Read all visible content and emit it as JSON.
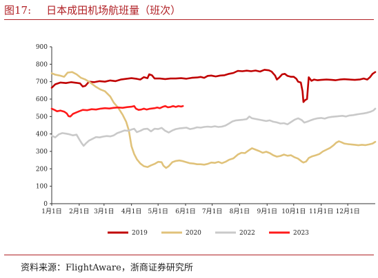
{
  "figure": {
    "number": "图17:",
    "title": "日本成田机场航班量（班次）",
    "source": "资料来源：FlightAware，浙商证券研究所"
  },
  "chart_data": {
    "type": "line",
    "title": "日本成田机场航班量（班次）",
    "xlabel": "",
    "ylabel": "",
    "ylim": [
      0,
      900
    ],
    "yticks": [
      0,
      100,
      200,
      300,
      400,
      500,
      600,
      700,
      800,
      900
    ],
    "x_range_days": [
      0,
      365
    ],
    "x_ticks": [
      {
        "label": "1月1日",
        "day": 0
      },
      {
        "label": "2月1日",
        "day": 31
      },
      {
        "label": "3月1日",
        "day": 59
      },
      {
        "label": "4月1日",
        "day": 90
      },
      {
        "label": "5月1日",
        "day": 120
      },
      {
        "label": "6月1日",
        "day": 151
      },
      {
        "label": "7月1日",
        "day": 181
      },
      {
        "label": "8月1日",
        "day": 212
      },
      {
        "label": "9月1日",
        "day": 243
      },
      {
        "label": "10月1日",
        "day": 273
      },
      {
        "label": "11月1日",
        "day": 304
      },
      {
        "label": "12月1日",
        "day": 334
      }
    ],
    "legend_position": "bottom",
    "grid": false,
    "series": [
      {
        "name": "2019",
        "color": "#c00000",
        "points": [
          [
            0,
            665
          ],
          [
            4,
            685
          ],
          [
            10,
            695
          ],
          [
            16,
            692
          ],
          [
            22,
            697
          ],
          [
            28,
            693
          ],
          [
            32,
            690
          ],
          [
            35,
            672
          ],
          [
            38,
            676
          ],
          [
            42,
            700
          ],
          [
            48,
            697
          ],
          [
            54,
            703
          ],
          [
            60,
            700
          ],
          [
            66,
            707
          ],
          [
            72,
            703
          ],
          [
            78,
            712
          ],
          [
            84,
            716
          ],
          [
            90,
            720
          ],
          [
            96,
            716
          ],
          [
            100,
            712
          ],
          [
            104,
            726
          ],
          [
            108,
            720
          ],
          [
            110,
            742
          ],
          [
            113,
            737
          ],
          [
            116,
            718
          ],
          [
            122,
            718
          ],
          [
            128,
            715
          ],
          [
            134,
            718
          ],
          [
            140,
            718
          ],
          [
            146,
            720
          ],
          [
            152,
            717
          ],
          [
            158,
            722
          ],
          [
            164,
            724
          ],
          [
            168,
            727
          ],
          [
            172,
            722
          ],
          [
            176,
            733
          ],
          [
            180,
            735
          ],
          [
            185,
            730
          ],
          [
            190,
            735
          ],
          [
            195,
            737
          ],
          [
            200,
            745
          ],
          [
            205,
            750
          ],
          [
            210,
            762
          ],
          [
            215,
            760
          ],
          [
            220,
            763
          ],
          [
            225,
            760
          ],
          [
            230,
            764
          ],
          [
            235,
            758
          ],
          [
            240,
            768
          ],
          [
            245,
            765
          ],
          [
            248,
            758
          ],
          [
            252,
            735
          ],
          [
            254,
            712
          ],
          [
            257,
            725
          ],
          [
            260,
            742
          ],
          [
            263,
            745
          ],
          [
            266,
            733
          ],
          [
            270,
            728
          ],
          [
            273,
            728
          ],
          [
            276,
            717
          ],
          [
            278,
            700
          ],
          [
            281,
            695
          ],
          [
            283,
            645
          ],
          [
            284,
            583
          ],
          [
            286,
            595
          ],
          [
            288,
            600
          ],
          [
            290,
            725
          ],
          [
            293,
            705
          ],
          [
            296,
            712
          ],
          [
            300,
            708
          ],
          [
            304,
            710
          ],
          [
            310,
            712
          ],
          [
            316,
            710
          ],
          [
            320,
            708
          ],
          [
            325,
            712
          ],
          [
            330,
            714
          ],
          [
            336,
            712
          ],
          [
            342,
            710
          ],
          [
            348,
            713
          ],
          [
            352,
            718
          ],
          [
            356,
            712
          ],
          [
            359,
            725
          ],
          [
            362,
            745
          ],
          [
            365,
            755
          ]
        ]
      },
      {
        "name": "2020",
        "color": "#e0c27a",
        "points": [
          [
            0,
            748
          ],
          [
            4,
            740
          ],
          [
            9,
            735
          ],
          [
            14,
            728
          ],
          [
            18,
            752
          ],
          [
            23,
            755
          ],
          [
            28,
            742
          ],
          [
            33,
            722
          ],
          [
            38,
            712
          ],
          [
            42,
            700
          ],
          [
            46,
            685
          ],
          [
            50,
            670
          ],
          [
            55,
            655
          ],
          [
            60,
            645
          ],
          [
            66,
            615
          ],
          [
            70,
            580
          ],
          [
            75,
            550
          ],
          [
            80,
            510
          ],
          [
            84,
            470
          ],
          [
            87,
            420
          ],
          [
            90,
            330
          ],
          [
            93,
            285
          ],
          [
            96,
            255
          ],
          [
            100,
            230
          ],
          [
            104,
            215
          ],
          [
            108,
            210
          ],
          [
            112,
            220
          ],
          [
            116,
            228
          ],
          [
            120,
            240
          ],
          [
            124,
            238
          ],
          [
            126,
            218
          ],
          [
            129,
            205
          ],
          [
            132,
            215
          ],
          [
            136,
            238
          ],
          [
            140,
            245
          ],
          [
            144,
            248
          ],
          [
            148,
            244
          ],
          [
            152,
            238
          ],
          [
            156,
            232
          ],
          [
            160,
            230
          ],
          [
            164,
            226
          ],
          [
            168,
            226
          ],
          [
            172,
            224
          ],
          [
            176,
            228
          ],
          [
            180,
            236
          ],
          [
            184,
            234
          ],
          [
            188,
            240
          ],
          [
            192,
            232
          ],
          [
            196,
            240
          ],
          [
            200,
            252
          ],
          [
            205,
            260
          ],
          [
            210,
            282
          ],
          [
            214,
            292
          ],
          [
            218,
            290
          ],
          [
            222,
            305
          ],
          [
            226,
            318
          ],
          [
            230,
            310
          ],
          [
            234,
            302
          ],
          [
            238,
            292
          ],
          [
            242,
            298
          ],
          [
            246,
            290
          ],
          [
            250,
            278
          ],
          [
            254,
            270
          ],
          [
            258,
            274
          ],
          [
            262,
            282
          ],
          [
            266,
            275
          ],
          [
            270,
            278
          ],
          [
            274,
            266
          ],
          [
            278,
            258
          ],
          [
            282,
            242
          ],
          [
            284,
            236
          ],
          [
            287,
            242
          ],
          [
            290,
            262
          ],
          [
            294,
            272
          ],
          [
            298,
            278
          ],
          [
            302,
            285
          ],
          [
            306,
            300
          ],
          [
            310,
            310
          ],
          [
            314,
            320
          ],
          [
            318,
            335
          ],
          [
            321,
            350
          ],
          [
            324,
            358
          ],
          [
            327,
            352
          ],
          [
            330,
            345
          ],
          [
            334,
            342
          ],
          [
            338,
            340
          ],
          [
            342,
            338
          ],
          [
            346,
            335
          ],
          [
            350,
            338
          ],
          [
            354,
            336
          ],
          [
            358,
            340
          ],
          [
            362,
            345
          ],
          [
            365,
            355
          ]
        ]
      },
      {
        "name": "2022",
        "color": "#c9c9c9",
        "points": [
          [
            0,
            390
          ],
          [
            4,
            380
          ],
          [
            8,
            398
          ],
          [
            12,
            405
          ],
          [
            16,
            402
          ],
          [
            20,
            398
          ],
          [
            24,
            392
          ],
          [
            28,
            396
          ],
          [
            31,
            370
          ],
          [
            34,
            345
          ],
          [
            36,
            332
          ],
          [
            39,
            348
          ],
          [
            42,
            362
          ],
          [
            46,
            372
          ],
          [
            50,
            382
          ],
          [
            54,
            380
          ],
          [
            58,
            385
          ],
          [
            62,
            388
          ],
          [
            66,
            386
          ],
          [
            70,
            392
          ],
          [
            74,
            405
          ],
          [
            78,
            412
          ],
          [
            82,
            420
          ],
          [
            86,
            418
          ],
          [
            90,
            425
          ],
          [
            93,
            430
          ],
          [
            96,
            410
          ],
          [
            100,
            418
          ],
          [
            104,
            428
          ],
          [
            108,
            430
          ],
          [
            112,
            415
          ],
          [
            116,
            430
          ],
          [
            120,
            428
          ],
          [
            124,
            435
          ],
          [
            128,
            418
          ],
          [
            132,
            408
          ],
          [
            136,
            420
          ],
          [
            140,
            428
          ],
          [
            144,
            432
          ],
          [
            148,
            434
          ],
          [
            152,
            436
          ],
          [
            156,
            428
          ],
          [
            160,
            432
          ],
          [
            164,
            438
          ],
          [
            168,
            436
          ],
          [
            172,
            440
          ],
          [
            176,
            442
          ],
          [
            180,
            440
          ],
          [
            184,
            444
          ],
          [
            188,
            440
          ],
          [
            192,
            442
          ],
          [
            196,
            448
          ],
          [
            200,
            460
          ],
          [
            204,
            472
          ],
          [
            208,
            478
          ],
          [
            212,
            480
          ],
          [
            216,
            482
          ],
          [
            220,
            485
          ],
          [
            223,
            500
          ],
          [
            226,
            490
          ],
          [
            230,
            486
          ],
          [
            234,
            482
          ],
          [
            238,
            478
          ],
          [
            242,
            474
          ],
          [
            246,
            478
          ],
          [
            250,
            470
          ],
          [
            254,
            466
          ],
          [
            258,
            460
          ],
          [
            262,
            462
          ],
          [
            266,
            455
          ],
          [
            270,
            468
          ],
          [
            274,
            482
          ],
          [
            278,
            490
          ],
          [
            282,
            480
          ],
          [
            285,
            465
          ],
          [
            288,
            470
          ],
          [
            292,
            478
          ],
          [
            296,
            485
          ],
          [
            300,
            490
          ],
          [
            304,
            492
          ],
          [
            308,
            488
          ],
          [
            312,
            495
          ],
          [
            316,
            498
          ],
          [
            320,
            500
          ],
          [
            324,
            502
          ],
          [
            328,
            504
          ],
          [
            332,
            500
          ],
          [
            336,
            506
          ],
          [
            340,
            508
          ],
          [
            344,
            512
          ],
          [
            348,
            515
          ],
          [
            352,
            518
          ],
          [
            356,
            522
          ],
          [
            360,
            528
          ],
          [
            363,
            535
          ],
          [
            365,
            545
          ]
        ]
      },
      {
        "name": "2023",
        "color": "#ff1a1a",
        "points": [
          [
            0,
            545
          ],
          [
            3,
            538
          ],
          [
            6,
            530
          ],
          [
            10,
            534
          ],
          [
            14,
            528
          ],
          [
            17,
            518
          ],
          [
            19,
            502
          ],
          [
            21,
            500
          ],
          [
            24,
            515
          ],
          [
            27,
            522
          ],
          [
            31,
            530
          ],
          [
            35,
            538
          ],
          [
            40,
            536
          ],
          [
            45,
            542
          ],
          [
            50,
            540
          ],
          [
            55,
            545
          ],
          [
            60,
            548
          ],
          [
            65,
            546
          ],
          [
            70,
            550
          ],
          [
            75,
            552
          ],
          [
            80,
            550
          ],
          [
            85,
            554
          ],
          [
            90,
            556
          ],
          [
            93,
            560
          ],
          [
            95,
            545
          ],
          [
            98,
            538
          ],
          [
            101,
            540
          ],
          [
            104,
            545
          ],
          [
            107,
            540
          ],
          [
            110,
            544
          ],
          [
            113,
            546
          ],
          [
            116,
            548
          ],
          [
            119,
            552
          ],
          [
            122,
            548
          ],
          [
            125,
            555
          ],
          [
            128,
            560
          ],
          [
            131,
            553
          ],
          [
            134,
            555
          ],
          [
            137,
            560
          ],
          [
            140,
            555
          ],
          [
            143,
            560
          ],
          [
            146,
            557
          ],
          [
            148,
            560
          ]
        ]
      }
    ]
  }
}
